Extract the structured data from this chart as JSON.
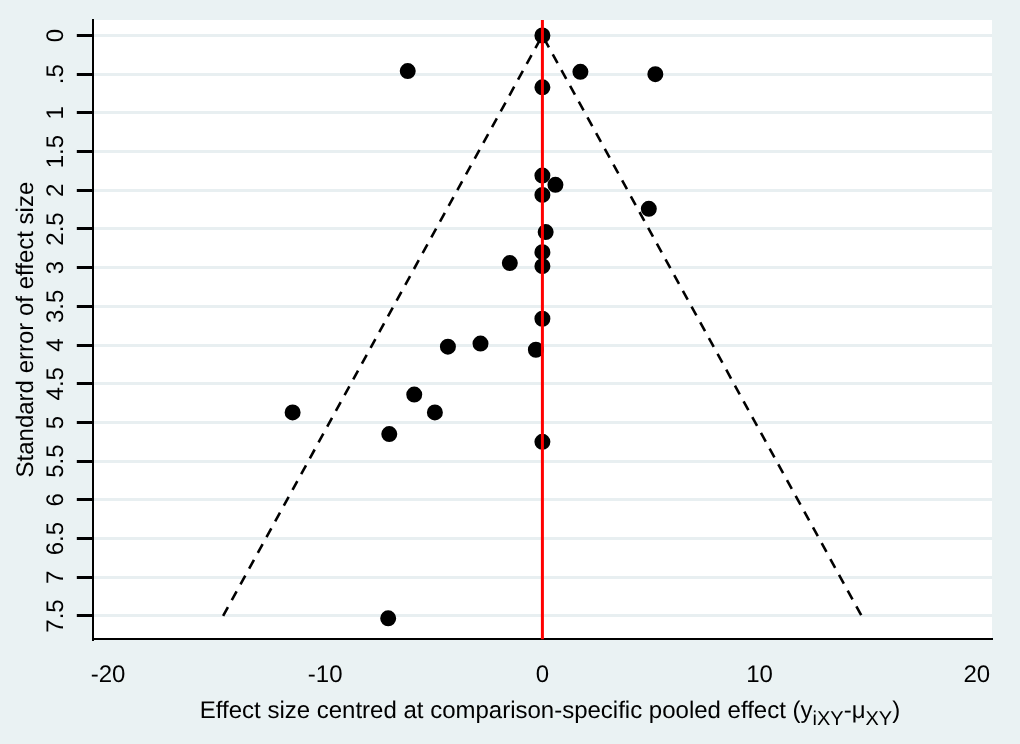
{
  "chart_data": {
    "type": "scatter",
    "xlabel": "Effect size centred at comparison-specific pooled effect (y$_{iXY}$-μ$_{XY}$)",
    "ylabel": "Standard error of effect size",
    "xlim": [
      -20.7,
      20.7
    ],
    "xticks": [
      -20,
      -10,
      0,
      10,
      20
    ],
    "ylim": [
      7.8,
      -0.2
    ],
    "yticks": [
      0,
      {
        "value": 0.5,
        "label": ".5"
      },
      1,
      1.5,
      2,
      2.5,
      3,
      3.5,
      4,
      4.5,
      5,
      5.5,
      6,
      6.5,
      7,
      7.5
    ],
    "grid": "y",
    "legend": false,
    "ref_lines": [
      {
        "axis": "x",
        "value": 0,
        "color": "#ff0000"
      }
    ],
    "series": [
      {
        "type": "scatter",
        "color": "#000000",
        "marker": "circle",
        "x": [
          0,
          -6.2,
          1.75,
          5.2,
          0,
          0,
          0.6,
          0,
          4.9,
          0.15,
          0,
          0,
          -1.5,
          0,
          -0.3,
          -4.35,
          -2.85,
          -5.9,
          -11.5,
          -4.95,
          -7.05,
          0,
          -7.1
        ],
        "values": [
          0,
          0.46,
          0.47,
          0.5,
          0.67,
          1.81,
          1.93,
          2.06,
          2.24,
          2.54,
          2.8,
          2.98,
          2.94,
          3.66,
          4.06,
          4.02,
          3.98,
          4.64,
          4.87,
          4.87,
          5.15,
          5.25,
          7.53
        ]
      },
      {
        "type": "line",
        "color": "#000000",
        "marker": "none",
        "line_style": "dashed",
        "x": [
          -14.7,
          0,
          14.7
        ],
        "values": [
          7.5,
          0,
          7.5
        ]
      }
    ]
  }
}
